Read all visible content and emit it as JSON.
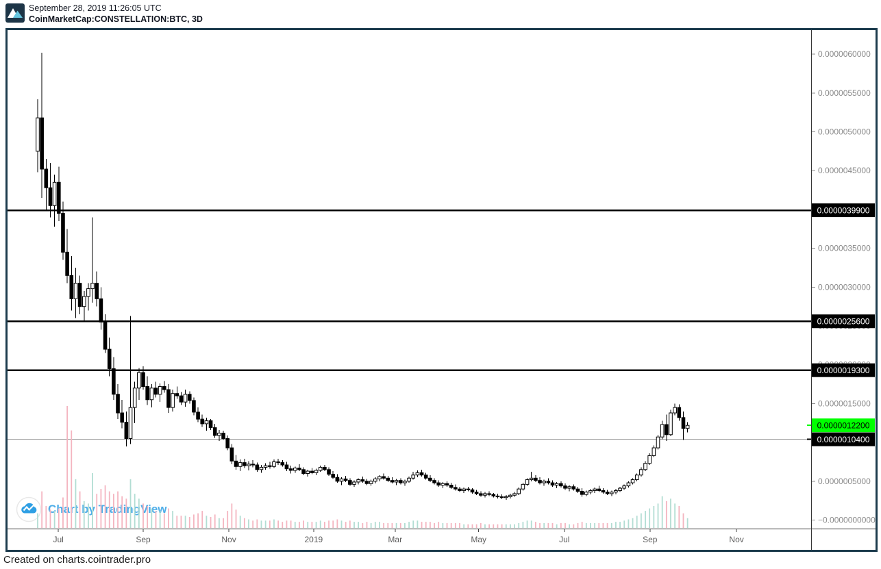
{
  "header": {
    "timestamp": "September 28, 2019 11:26:05 UTC",
    "symbol": "CoinMarketCap:CONSTELLATION:BTC, 3D",
    "logo": {
      "bg": "#1d3547",
      "left_peak": "#ffffff",
      "right_peak": "#67c6df"
    }
  },
  "watermark": {
    "label": "Chart by TradingView",
    "color": "#2e9fe4"
  },
  "footer": {
    "text": "Created on charts.cointrader.pro"
  },
  "chart_data": {
    "type": "candlestick",
    "title": "CoinMarketCap:CONSTELLATION:BTC, 3D",
    "value_unit": "1e-10 BTC per integer unit",
    "y_range_units": [
      -1100,
      63100
    ],
    "grid": "off",
    "colors": {
      "candle_up_fill": "#ffffff",
      "candle_down_fill": "#000000",
      "candle_stroke": "#000000",
      "volume_up": "#b2ddd3",
      "volume_down": "#f4b5c0",
      "axis_line": "#363636",
      "tick_text": "#8a8a8a",
      "month_text": "#5c5c5c",
      "hline": "#000000",
      "baseline_gray": "#9b9b9b",
      "label_black_bg": "#000000",
      "label_black_fg": "#ffffff",
      "label_last_bg": "#00ff00",
      "label_last_fg": "#000000"
    },
    "y_ticks": [
      {
        "v": 60000,
        "label": "0.0000060000"
      },
      {
        "v": 55000,
        "label": "0.0000055000"
      },
      {
        "v": 50000,
        "label": "0.0000050000"
      },
      {
        "v": 45000,
        "label": "0.0000045000"
      },
      {
        "v": 40000,
        "label": "0.0000040000"
      },
      {
        "v": 35000,
        "label": "0.0000035000"
      },
      {
        "v": 30000,
        "label": "0.0000030000"
      },
      {
        "v": 25000,
        "label": "0.0000025000"
      },
      {
        "v": 20000,
        "label": "0.0000020000"
      },
      {
        "v": 15000,
        "label": "0.0000015000"
      },
      {
        "v": 10000,
        "label": "0.0000010000"
      },
      {
        "v": 5000,
        "label": "0.0000005000"
      },
      {
        "v": 0,
        "label": "−0.0000000000"
      }
    ],
    "x_ticks": [
      {
        "label": "Jul",
        "i": 4.9
      },
      {
        "label": "Sep",
        "i": 25.0
      },
      {
        "label": "Nov",
        "i": 45.3
      },
      {
        "label": "2019",
        "i": 65.4
      },
      {
        "label": "Mar",
        "i": 84.7
      },
      {
        "label": "May",
        "i": 104.5
      },
      {
        "label": "Jul",
        "i": 124.8
      },
      {
        "label": "Sep",
        "i": 145.1
      },
      {
        "label": "Nov",
        "i": 165.6
      }
    ],
    "h_lines": [
      {
        "v": 39900,
        "label": "0.0000039900"
      },
      {
        "v": 25600,
        "label": "0.0000025600"
      },
      {
        "v": 19300,
        "label": "0.0000019300"
      }
    ],
    "base_line": {
      "v": 10400,
      "label": "0.0000010400"
    },
    "last_price": {
      "v": 12200,
      "label": "0.0000012200"
    },
    "candles_format": [
      "open",
      "high",
      "low",
      "close",
      "volume"
    ],
    "candles": [
      [
        47500,
        54200,
        44800,
        51800,
        12
      ],
      [
        51800,
        60200,
        41500,
        45200,
        30
      ],
      [
        45200,
        46500,
        40000,
        42800,
        18
      ],
      [
        42800,
        46000,
        39000,
        40500,
        15
      ],
      [
        40500,
        44500,
        37800,
        43500,
        14
      ],
      [
        43500,
        45500,
        38500,
        39500,
        16
      ],
      [
        39500,
        41000,
        33500,
        34500,
        25
      ],
      [
        34500,
        37500,
        30500,
        31500,
        100
      ],
      [
        31500,
        34000,
        27000,
        28500,
        80
      ],
      [
        28500,
        32500,
        26000,
        30500,
        40
      ],
      [
        30500,
        31500,
        26500,
        27500,
        30
      ],
      [
        27500,
        29500,
        25500,
        28800,
        22
      ],
      [
        28800,
        30500,
        27000,
        29800,
        20
      ],
      [
        29800,
        39000,
        28000,
        30500,
        45
      ],
      [
        30500,
        32000,
        27500,
        28500,
        28
      ],
      [
        28500,
        30000,
        24500,
        25500,
        32
      ],
      [
        25500,
        26500,
        21500,
        22000,
        35
      ],
      [
        22000,
        23500,
        18500,
        19500,
        30
      ],
      [
        19500,
        21000,
        15500,
        16200,
        28
      ],
      [
        16200,
        17500,
        13000,
        13800,
        30
      ],
      [
        13800,
        15500,
        11800,
        12600,
        26
      ],
      [
        12600,
        14000,
        9500,
        10500,
        24
      ],
      [
        10500,
        26300,
        9800,
        14500,
        40
      ],
      [
        14500,
        17800,
        12500,
        17000,
        28
      ],
      [
        17000,
        19600,
        15500,
        19000,
        24
      ],
      [
        19000,
        19800,
        16800,
        17200,
        20
      ],
      [
        17200,
        18500,
        14800,
        15500,
        18
      ],
      [
        15500,
        17500,
        14500,
        17000,
        16
      ],
      [
        17000,
        17800,
        15800,
        16200,
        14
      ],
      [
        16200,
        17600,
        15200,
        17200,
        14
      ],
      [
        17200,
        17900,
        16400,
        16800,
        12
      ],
      [
        16800,
        17500,
        13800,
        14500,
        16
      ],
      [
        14500,
        16800,
        14000,
        16300,
        14
      ],
      [
        16300,
        17200,
        15600,
        16000,
        10
      ],
      [
        16000,
        16500,
        14800,
        15200,
        10
      ],
      [
        15200,
        16800,
        14600,
        16200,
        10
      ],
      [
        16200,
        16600,
        15000,
        15400,
        9
      ],
      [
        15400,
        15800,
        13500,
        13900,
        11
      ],
      [
        13900,
        14500,
        12600,
        13000,
        12
      ],
      [
        13000,
        13600,
        12000,
        12400,
        14
      ],
      [
        12400,
        13200,
        11500,
        12800,
        10
      ],
      [
        12800,
        13000,
        11600,
        11900,
        9
      ],
      [
        11900,
        12400,
        10600,
        10900,
        11
      ],
      [
        10900,
        11600,
        10200,
        11200,
        8
      ],
      [
        11200,
        11500,
        10300,
        10500,
        8
      ],
      [
        10500,
        10900,
        9000,
        9300,
        14
      ],
      [
        9300,
        9800,
        7200,
        7600,
        20
      ],
      [
        7600,
        8400,
        6500,
        6900,
        15
      ],
      [
        6900,
        7800,
        6300,
        7400,
        10
      ],
      [
        7400,
        7900,
        6700,
        7000,
        8
      ],
      [
        7000,
        7600,
        6400,
        7200,
        7
      ],
      [
        7200,
        7700,
        6800,
        7100,
        6
      ],
      [
        7100,
        7400,
        6200,
        6500,
        7
      ],
      [
        6500,
        7100,
        6100,
        6800,
        6
      ],
      [
        6800,
        7300,
        6500,
        7000,
        6
      ],
      [
        7000,
        7500,
        6600,
        6900,
        6
      ],
      [
        6900,
        7800,
        6700,
        7500,
        7
      ],
      [
        7500,
        7900,
        7100,
        7400,
        6
      ],
      [
        7400,
        7700,
        6900,
        7100,
        5
      ],
      [
        7100,
        7500,
        6300,
        6600,
        6
      ],
      [
        6600,
        7000,
        6000,
        6400,
        6
      ],
      [
        6400,
        6900,
        6100,
        6700,
        5
      ],
      [
        6700,
        7200,
        6300,
        6500,
        5
      ],
      [
        6500,
        6800,
        5800,
        6000,
        6
      ],
      [
        6000,
        6500,
        5600,
        6300,
        5
      ],
      [
        6300,
        6700,
        5900,
        6100,
        5
      ],
      [
        6100,
        6600,
        5800,
        6400,
        5
      ],
      [
        6400,
        7000,
        6200,
        6800,
        6
      ],
      [
        6800,
        7100,
        6300,
        6500,
        5
      ],
      [
        6500,
        6800,
        5700,
        5900,
        6
      ],
      [
        5900,
        6300,
        5300,
        5500,
        6
      ],
      [
        5500,
        5900,
        4800,
        5000,
        7
      ],
      [
        5000,
        5500,
        4500,
        5300,
        6
      ],
      [
        5300,
        5700,
        4900,
        5100,
        5
      ],
      [
        5100,
        5400,
        4400,
        4600,
        6
      ],
      [
        4600,
        5100,
        4300,
        4900,
        5
      ],
      [
        4900,
        5400,
        4600,
        5200,
        5
      ],
      [
        5200,
        5600,
        4800,
        5000,
        4
      ],
      [
        5000,
        5300,
        4500,
        4700,
        5
      ],
      [
        4700,
        5200,
        4400,
        5000,
        4
      ],
      [
        5000,
        5500,
        4700,
        5300,
        5
      ],
      [
        5300,
        5800,
        5000,
        5600,
        5
      ],
      [
        5600,
        6000,
        5200,
        5400,
        4
      ],
      [
        5400,
        5700,
        4900,
        5100,
        4
      ],
      [
        5100,
        5500,
        4700,
        4900,
        4
      ],
      [
        4900,
        5300,
        4500,
        5100,
        4
      ],
      [
        5100,
        5400,
        4600,
        4800,
        4
      ],
      [
        4800,
        5200,
        4400,
        5000,
        4
      ],
      [
        5000,
        5600,
        4800,
        5400,
        5
      ],
      [
        5400,
        6200,
        5200,
        5800,
        6
      ],
      [
        5800,
        6400,
        5500,
        6100,
        6
      ],
      [
        6100,
        6500,
        5600,
        5800,
        5
      ],
      [
        5800,
        6100,
        5200,
        5400,
        5
      ],
      [
        5400,
        5800,
        4900,
        5100,
        5
      ],
      [
        5100,
        5400,
        4600,
        4800,
        4
      ],
      [
        4800,
        5100,
        4300,
        4500,
        5
      ],
      [
        4500,
        4900,
        4100,
        4700,
        4
      ],
      [
        4700,
        5000,
        4300,
        4500,
        4
      ],
      [
        4500,
        4800,
        4000,
        4200,
        4
      ],
      [
        4200,
        4600,
        3800,
        4000,
        4
      ],
      [
        4000,
        4300,
        3600,
        3800,
        4
      ],
      [
        3800,
        4200,
        3500,
        4000,
        3
      ],
      [
        4000,
        4300,
        3700,
        3900,
        3
      ],
      [
        3900,
        4100,
        3400,
        3600,
        3
      ],
      [
        3600,
        3900,
        3200,
        3400,
        3
      ],
      [
        3400,
        3700,
        3000,
        3200,
        4
      ],
      [
        3200,
        3600,
        2900,
        3400,
        3
      ],
      [
        3400,
        3700,
        3100,
        3300,
        3
      ],
      [
        3300,
        3500,
        2900,
        3100,
        3
      ],
      [
        3100,
        3400,
        2800,
        3000,
        3
      ],
      [
        3000,
        3300,
        2700,
        2900,
        3
      ],
      [
        2900,
        3200,
        2600,
        3000,
        3
      ],
      [
        3000,
        3400,
        2800,
        3200,
        3
      ],
      [
        3200,
        3600,
        3000,
        3400,
        3
      ],
      [
        3400,
        4200,
        3200,
        4000,
        4
      ],
      [
        4000,
        4800,
        3800,
        4600,
        5
      ],
      [
        4600,
        5400,
        4400,
        5200,
        6
      ],
      [
        5200,
        6200,
        5000,
        5400,
        6
      ],
      [
        5400,
        5800,
        4900,
        5100,
        5
      ],
      [
        5100,
        5500,
        4600,
        4800,
        4
      ],
      [
        4800,
        5200,
        4400,
        5000,
        4
      ],
      [
        5000,
        5400,
        4600,
        4800,
        4
      ],
      [
        4800,
        5100,
        4300,
        4500,
        4
      ],
      [
        4500,
        4900,
        4100,
        4700,
        3
      ],
      [
        4700,
        5000,
        4200,
        4400,
        4
      ],
      [
        4400,
        4700,
        3900,
        4100,
        4
      ],
      [
        4100,
        4500,
        3700,
        4300,
        3
      ],
      [
        4300,
        4600,
        3800,
        4000,
        3
      ],
      [
        4000,
        4300,
        3500,
        3700,
        4
      ],
      [
        3700,
        4100,
        3000,
        3300,
        5
      ],
      [
        3300,
        3800,
        3100,
        3600,
        4
      ],
      [
        3600,
        4000,
        3300,
        3800,
        4
      ],
      [
        3800,
        4200,
        3500,
        4000,
        4
      ],
      [
        4000,
        4400,
        3600,
        3800,
        4
      ],
      [
        3800,
        4100,
        3400,
        3600,
        4
      ],
      [
        3600,
        3900,
        3200,
        3400,
        4
      ],
      [
        3400,
        3800,
        3100,
        3600,
        4
      ],
      [
        3600,
        4000,
        3300,
        3800,
        5
      ],
      [
        3800,
        4300,
        3600,
        4100,
        5
      ],
      [
        4100,
        4600,
        3900,
        4400,
        6
      ],
      [
        4400,
        5000,
        4200,
        4800,
        7
      ],
      [
        4800,
        5400,
        4600,
        5200,
        8
      ],
      [
        5200,
        6000,
        5000,
        5800,
        10
      ],
      [
        5800,
        6800,
        5600,
        6500,
        12
      ],
      [
        6500,
        7600,
        6300,
        7300,
        14
      ],
      [
        7300,
        8600,
        7100,
        8300,
        16
      ],
      [
        8300,
        9600,
        8100,
        9300,
        18
      ],
      [
        9300,
        11000,
        9100,
        10700,
        20
      ],
      [
        10700,
        12800,
        10400,
        12300,
        26
      ],
      [
        12300,
        13600,
        10200,
        11000,
        22
      ],
      [
        11000,
        14200,
        10800,
        13800,
        24
      ],
      [
        13800,
        15000,
        13500,
        14500,
        20
      ],
      [
        14500,
        14900,
        12800,
        13200,
        18
      ],
      [
        13200,
        14000,
        10300,
        11800,
        12
      ],
      [
        11800,
        12600,
        11300,
        12200,
        8
      ]
    ]
  }
}
